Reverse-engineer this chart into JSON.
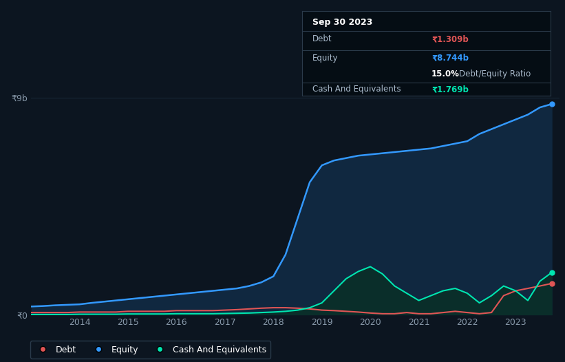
{
  "bg_color": "#0c1520",
  "bg_color_chart": "#0c1520",
  "grid_color": "#1a2a3a",
  "ylabel_top": "₹9b",
  "ylabel_bottom": "₹0",
  "debt_color": "#e05555",
  "equity_color": "#3399ff",
  "cash_color": "#00e5b0",
  "equity_fill_color": "#102840",
  "cash_fill_color": "#0a2e2a",
  "tooltip": {
    "date": "Sep 30 2023",
    "debt_label": "Debt",
    "debt_value": "₹1.309b",
    "debt_color": "#e05555",
    "equity_label": "Equity",
    "equity_value": "₹8.744b",
    "equity_color": "#3399ff",
    "ratio_text": "15.0%",
    "ratio_label": "Debt/Equity Ratio",
    "cash_label": "Cash And Equivalents",
    "cash_value": "₹1.769b",
    "cash_color": "#00e5b0"
  },
  "legend_items": [
    "Debt",
    "Equity",
    "Cash And Equivalents"
  ],
  "legend_colors": [
    "#e05555",
    "#3399ff",
    "#00e5b0"
  ],
  "years": [
    2013.0,
    2013.25,
    2013.5,
    2013.75,
    2014.0,
    2014.25,
    2014.5,
    2014.75,
    2015.0,
    2015.25,
    2015.5,
    2015.75,
    2016.0,
    2016.25,
    2016.5,
    2016.75,
    2017.0,
    2017.25,
    2017.5,
    2017.75,
    2018.0,
    2018.25,
    2018.5,
    2018.75,
    2019.0,
    2019.25,
    2019.5,
    2019.75,
    2020.0,
    2020.25,
    2020.5,
    2020.75,
    2021.0,
    2021.25,
    2021.5,
    2021.75,
    2022.0,
    2022.25,
    2022.5,
    2022.75,
    2023.0,
    2023.25,
    2023.5,
    2023.75
  ],
  "equity": [
    0.35,
    0.37,
    0.4,
    0.42,
    0.44,
    0.5,
    0.55,
    0.6,
    0.65,
    0.7,
    0.75,
    0.8,
    0.85,
    0.9,
    0.95,
    1.0,
    1.05,
    1.1,
    1.2,
    1.35,
    1.6,
    2.5,
    4.0,
    5.5,
    6.2,
    6.4,
    6.5,
    6.6,
    6.65,
    6.7,
    6.75,
    6.8,
    6.85,
    6.9,
    7.0,
    7.1,
    7.2,
    7.5,
    7.7,
    7.9,
    8.1,
    8.3,
    8.6,
    8.744
  ],
  "debt": [
    0.1,
    0.1,
    0.1,
    0.1,
    0.12,
    0.12,
    0.12,
    0.12,
    0.15,
    0.15,
    0.15,
    0.15,
    0.18,
    0.18,
    0.18,
    0.18,
    0.2,
    0.22,
    0.25,
    0.28,
    0.3,
    0.3,
    0.28,
    0.25,
    0.2,
    0.18,
    0.15,
    0.12,
    0.08,
    0.05,
    0.05,
    0.1,
    0.05,
    0.05,
    0.1,
    0.15,
    0.1,
    0.05,
    0.1,
    0.8,
    1.0,
    1.1,
    1.2,
    1.309
  ],
  "cash": [
    0.02,
    0.02,
    0.02,
    0.02,
    0.03,
    0.03,
    0.03,
    0.03,
    0.04,
    0.04,
    0.04,
    0.04,
    0.05,
    0.05,
    0.05,
    0.05,
    0.06,
    0.07,
    0.08,
    0.1,
    0.12,
    0.15,
    0.2,
    0.3,
    0.5,
    1.0,
    1.5,
    1.8,
    2.0,
    1.7,
    1.2,
    0.9,
    0.6,
    0.8,
    1.0,
    1.1,
    0.9,
    0.5,
    0.8,
    1.2,
    1.0,
    0.6,
    1.4,
    1.769
  ],
  "ylim": [
    0,
    9
  ],
  "xlim": [
    2013.0,
    2023.9
  ],
  "x_tick_positions": [
    2014.0,
    2015.0,
    2016.0,
    2017.0,
    2018.0,
    2019.0,
    2020.0,
    2021.0,
    2022.0,
    2023.0
  ],
  "x_tick_labels": [
    "2014",
    "2015",
    "2016",
    "2017",
    "2018",
    "2019",
    "2020",
    "2021",
    "2022",
    "2023"
  ]
}
